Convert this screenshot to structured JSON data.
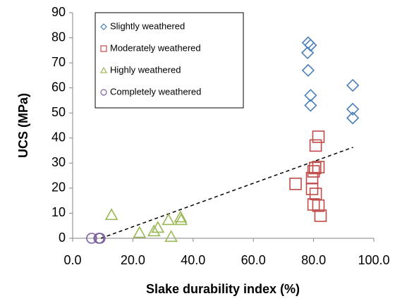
{
  "chart_data": {
    "type": "scatter",
    "xlabel": "Slake durability index (%)",
    "ylabel": "UCS (MPa)",
    "xlim": [
      0,
      100
    ],
    "ylim": [
      0,
      90
    ],
    "xticks": [
      {
        "value": 0,
        "label": "0.0"
      },
      {
        "value": 20,
        "label": "20.0"
      },
      {
        "value": 40,
        "label": "40.0"
      },
      {
        "value": 60,
        "label": "60.0"
      },
      {
        "value": 80,
        "label": "80.0"
      },
      {
        "value": 100,
        "label": "100.0"
      }
    ],
    "yticks": [
      0,
      10,
      20,
      30,
      40,
      50,
      60,
      70,
      80,
      90
    ],
    "series": [
      {
        "name": "Slightly weathered",
        "color": "#4a7ebb",
        "marker": "diamond",
        "x": [
          78.2,
          79,
          78,
          78.2,
          79,
          79,
          93,
          93,
          93
        ],
        "y": [
          78,
          77,
          74,
          67,
          57,
          53,
          61,
          51.5,
          48
        ]
      },
      {
        "name": "Moderately weathered",
        "color": "#be4b48",
        "marker": "square",
        "x": [
          81.6,
          80.7,
          81.6,
          80.5,
          80,
          74,
          79.5,
          79.5,
          80.7,
          80,
          81.6,
          82.3
        ],
        "y": [
          40.5,
          37,
          28.4,
          28,
          26.7,
          21.7,
          24,
          19.7,
          17.7,
          13.5,
          13,
          9
        ]
      },
      {
        "name": "Highly weathered",
        "color": "#98b954",
        "marker": "triangle",
        "x": [
          12.9,
          22.2,
          27,
          28.3,
          31.8,
          32.7,
          35.8,
          36
        ],
        "y": [
          9.3,
          2.2,
          2.8,
          4.2,
          7.3,
          0.6,
          8.4,
          7.3
        ]
      },
      {
        "name": "Completely weathered",
        "color": "#7d60a0",
        "marker": "circle",
        "x": [
          6.3,
          8.7,
          9.1
        ],
        "y": [
          0,
          0,
          0
        ]
      }
    ],
    "trendline": {
      "x": [
        9.4,
        93.1
      ],
      "y": [
        0,
        36.3
      ]
    }
  }
}
